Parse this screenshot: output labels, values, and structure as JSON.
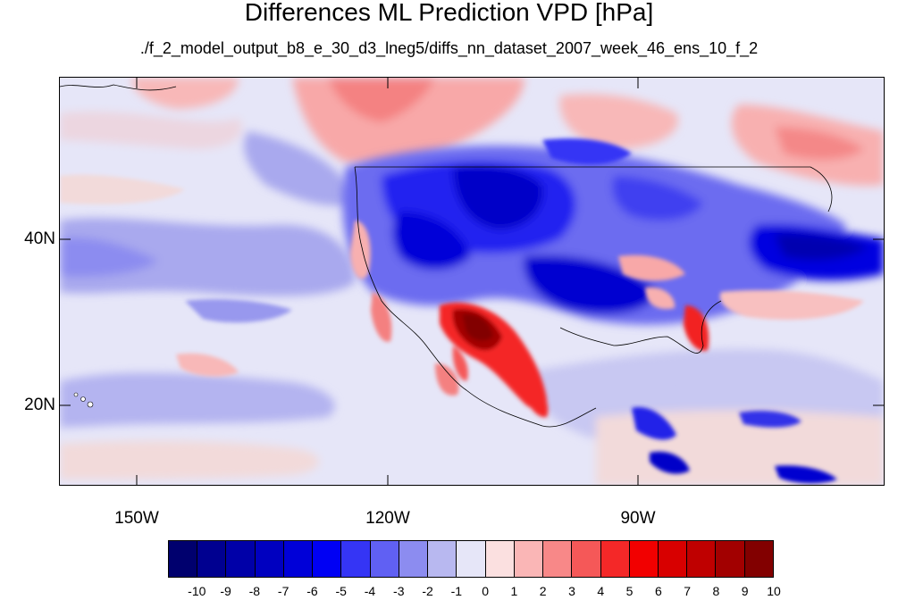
{
  "title": "Differences ML Prediction VPD [hPa]",
  "subtitle": "./f_2_model_output_b8_e_30_d3_lneg5/diffs_nn_dataset_2007_week_46_ens_10_f_2",
  "map": {
    "lat_ticks": [
      "40N",
      "20N"
    ],
    "lon_ticks": [
      "150W",
      "120W",
      "90W"
    ],
    "background_color": "#e6e6f8"
  },
  "colorbar": {
    "labels": [
      "-10",
      "-9",
      "-8",
      "-7",
      "-6",
      "-5",
      "-4",
      "-3",
      "-2",
      "-1",
      "0",
      "1",
      "2",
      "3",
      "4",
      "5",
      "6",
      "7",
      "8",
      "9",
      "10"
    ],
    "colors": [
      "#00006e",
      "#000090",
      "#0000a8",
      "#0000c0",
      "#0000d8",
      "#0000f4",
      "#3535f5",
      "#6060f3",
      "#8c8cf0",
      "#b8b8f0",
      "#e6e6f8",
      "#fbe0e0",
      "#fab6b6",
      "#f88888",
      "#f55858",
      "#f42828",
      "#f20000",
      "#d80000",
      "#bf0000",
      "#a20000",
      "#820000"
    ]
  }
}
